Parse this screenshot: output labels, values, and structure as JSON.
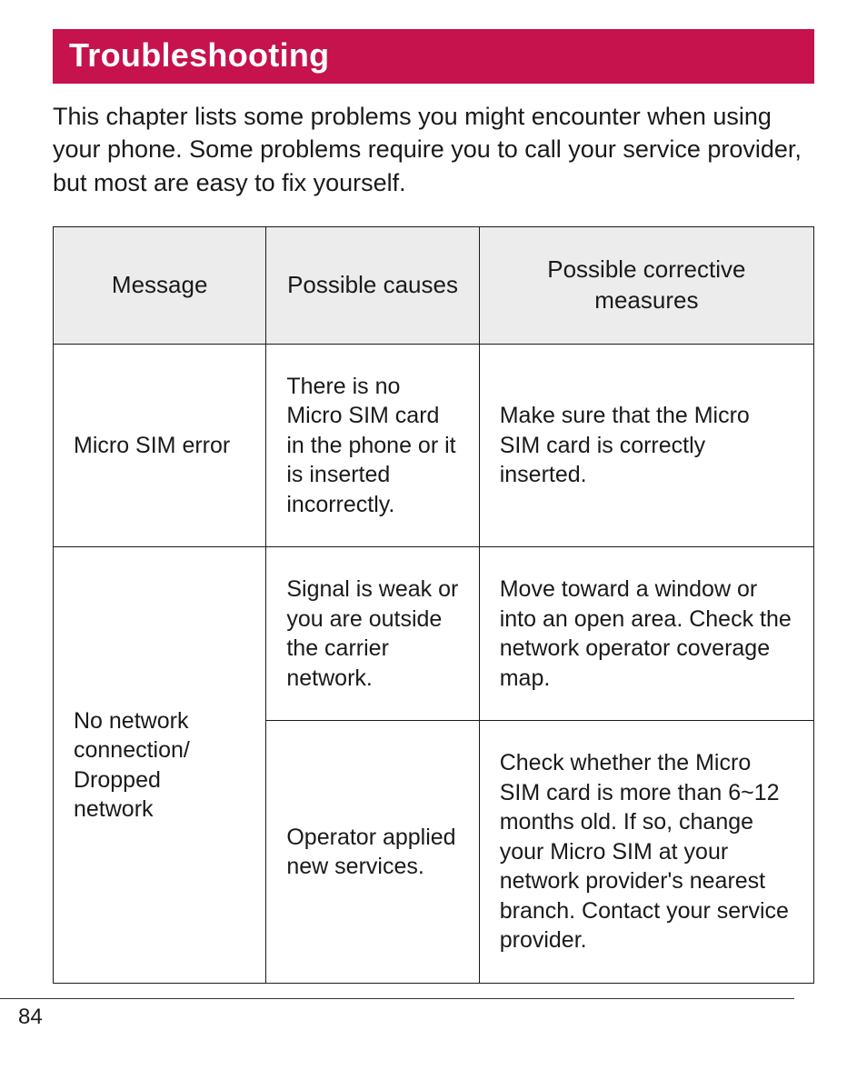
{
  "page": {
    "title": "Troubleshooting",
    "intro": "This chapter lists some problems you might encounter when using your phone. Some problems require you to call your service provider, but most are easy to fix yourself.",
    "page_number": "84",
    "colors": {
      "header_bg": "#c6124d",
      "header_text": "#ffffff",
      "table_header_bg": "#ececec",
      "border": "#1a1a1a",
      "text": "#1a1a1a",
      "background": "#ffffff"
    },
    "fonts": {
      "title_size": 36,
      "body_size": 27,
      "table_header_size": 26,
      "table_cell_size": 25,
      "page_number_size": 24
    }
  },
  "table": {
    "type": "table",
    "columns": [
      "Message",
      "Possible causes",
      "Possible corrective measures"
    ],
    "column_widths": [
      "28%",
      "28%",
      "44%"
    ],
    "rows": [
      {
        "message": "Micro SIM error",
        "message_rowspan": 1,
        "cause": "There is no Micro SIM card in the phone or it is inserted incorrectly.",
        "measure": "Make sure that the Micro SIM card is correctly inserted."
      },
      {
        "message": "No network connection/ Dropped network",
        "message_rowspan": 2,
        "cause": "Signal is weak or you are outside the carrier network.",
        "measure": "Move toward a window or into an open area. Check the network operator coverage map."
      },
      {
        "message": null,
        "message_rowspan": 0,
        "cause": "Operator applied new services.",
        "measure": "Check whether the Micro SIM card is more than 6~12 months old. If so, change your Micro SIM at your network provider's nearest branch. Contact your service provider."
      }
    ]
  }
}
